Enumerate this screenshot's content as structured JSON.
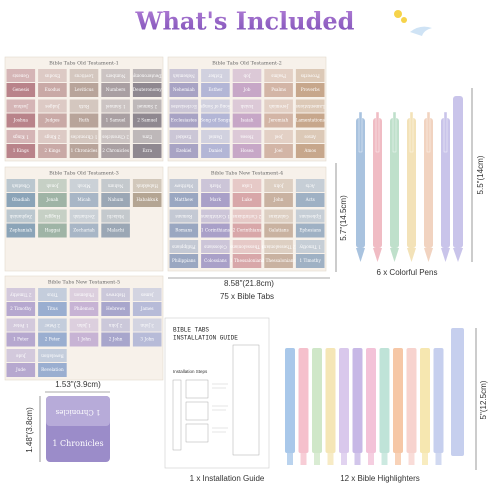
{
  "title": "What's Included",
  "sheets": [
    {
      "title": "Bible Tabs Old Testament-1",
      "tabs": [
        "Genesis",
        "Exodus",
        "Leviticus",
        "Numbers",
        "Deuteronomy",
        "Joshua",
        "Judges",
        "Ruth",
        "1 Samuel",
        "2 Samuel",
        "1 Kings",
        "2 Kings",
        "1 Chronicles",
        "2 Chronicles",
        "Ezra"
      ]
    },
    {
      "title": "Bible Tabs Old Testament-2",
      "tabs": [
        "Nehemiah",
        "Esther",
        "Job",
        "Psalms",
        "Proverbs",
        "Ecclesiastes",
        "Song of Songs",
        "Isaiah",
        "Jeremiah",
        "Lamentations",
        "Ezekiel",
        "Daniel",
        "Hosea",
        "Joel",
        "Amos"
      ]
    },
    {
      "title": "Bible Tabs Old Testament-3",
      "tabs": [
        "Obadiah",
        "Jonah",
        "Micah",
        "Nahum",
        "Habakkuk",
        "Zephaniah",
        "Haggai",
        "Zechariah",
        "Malachi"
      ]
    },
    {
      "title": "Bible Tabs New Testament-4",
      "tabs": [
        "Matthew",
        "Mark",
        "Luke",
        "John",
        "Acts",
        "Romans",
        "1 Corinthians",
        "2 Corinthians",
        "Galatians",
        "Ephesians",
        "Philippians",
        "Colossians",
        "1 Thessalonians",
        "2 Thessalonians",
        "1 Timothy"
      ]
    },
    {
      "title": "Bible Tabs New Testament-5",
      "tabs": [
        "2 Timothy",
        "Titus",
        "Philemon",
        "Hebrews",
        "James",
        "1 Peter",
        "2 Peter",
        "1 John",
        "2 John",
        "3 John",
        "Jude",
        "Revelation"
      ]
    }
  ],
  "dimensions": {
    "sheet_height": "5.7\"(14.5cm)",
    "sheet_width": "8.58\"(21.8cm)",
    "pen_length": "5.5\"(14cm)",
    "highlighter_length": "5\"(12.5cm)",
    "tab_width": "1.53\"(3.9cm)",
    "tab_height": "1.48\"(3.8cm)"
  },
  "sample_tab": "1 Chronicles",
  "guide": {
    "title_line1": "BIBLE TABS",
    "title_line2": "INSTALLATION GUIDE",
    "steps_heading": "Installation Steps"
  },
  "captions": {
    "tabs": "75 x Bible Tabs",
    "pens": "6 x Colorful Pens",
    "guide": "1 x Installation Guide",
    "highlighters": "12 x Bible Highlighters"
  }
}
